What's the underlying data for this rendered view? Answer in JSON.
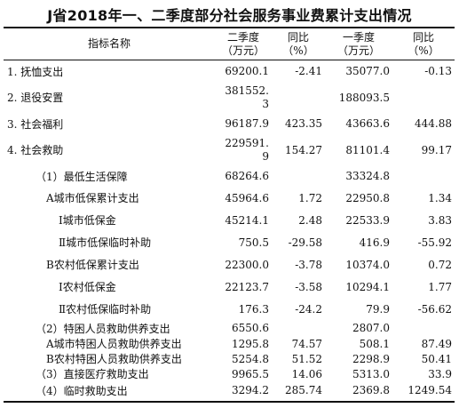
{
  "title": "J省2018年一、二季度部分社会服务事业费累计支出情况",
  "header": {
    "name": "指标名称",
    "q2": [
      "二季度",
      "（万元）"
    ],
    "yoy2": [
      "同比",
      "（%）"
    ],
    "q1": [
      "一季度",
      "（万元）"
    ],
    "yoy1": [
      "同比",
      "（%）"
    ]
  },
  "rows": [
    {
      "name": "1. 抚恤支出",
      "q2": "69200.1",
      "yoy2": "-2.41",
      "q1": "35077.0",
      "yoy1": "-0.13"
    },
    {
      "name": "2. 退役安置",
      "q2": [
        "381552.",
        "3"
      ],
      "yoy2": "",
      "q1": "188093.5",
      "yoy1": ""
    },
    {
      "name": "3. 社会福利",
      "q2": "96187.9",
      "yoy2": "423.35",
      "q1": "43663.6",
      "yoy1": "444.88"
    },
    {
      "name": "4. 社会救助",
      "q2": [
        "229591.",
        "9"
      ],
      "yoy2": "154.27",
      "q1": "81101.4",
      "yoy1": "99.17"
    },
    {
      "name": "（1）最低生活保障",
      "q2": "68264.6",
      "yoy2": "",
      "q1": "33324.8",
      "yoy1": ""
    },
    {
      "name": "A城市低保累计支出",
      "q2": "45964.6",
      "yoy2": "1.72",
      "q1": "22950.8",
      "yoy1": "1.34"
    },
    {
      "name": "Ⅰ城市低保金",
      "q2": "45214.1",
      "yoy2": "2.48",
      "q1": "22533.9",
      "yoy1": "3.83"
    },
    {
      "name": "Ⅱ城市低保临时补助",
      "q2": "750.5",
      "yoy2": "-29.58",
      "q1": "416.9",
      "yoy1": "-55.92"
    },
    {
      "name": "B农村低保累计支出",
      "q2": "22300.0",
      "yoy2": "-3.78",
      "q1": "10374.0",
      "yoy1": "0.72"
    },
    {
      "name": "Ⅰ农村低保金",
      "q2": "22123.7",
      "yoy2": "-3.58",
      "q1": "10294.1",
      "yoy1": "1.77"
    },
    {
      "name": "Ⅱ农村低保临时补助",
      "q2": "176.3",
      "yoy2": "-24.2",
      "q1": "79.9",
      "yoy1": "-56.62"
    },
    {
      "name": "（2）特困人员救助供养支出",
      "q2": "6550.6",
      "yoy2": "",
      "q1": "2807.0",
      "yoy1": ""
    },
    {
      "name": "A城市特困人员救助供养支出",
      "q2": "1295.8",
      "yoy2": "74.57",
      "q1": "508.1",
      "yoy1": "87.49"
    },
    {
      "name": "B农村特困人员救助供养支出",
      "q2": "5254.8",
      "yoy2": "51.52",
      "q1": "2298.9",
      "yoy1": "50.41"
    },
    {
      "name": "（3）直接医疗救助支出",
      "q2": "9965.5",
      "yoy2": "14.06",
      "q1": "5313.0",
      "yoy1": "33.9"
    },
    {
      "name": "（4）临时救助支出",
      "q2": "3294.2",
      "yoy2": "285.74",
      "q1": "2369.8",
      "yoy1": "1249.54"
    }
  ]
}
